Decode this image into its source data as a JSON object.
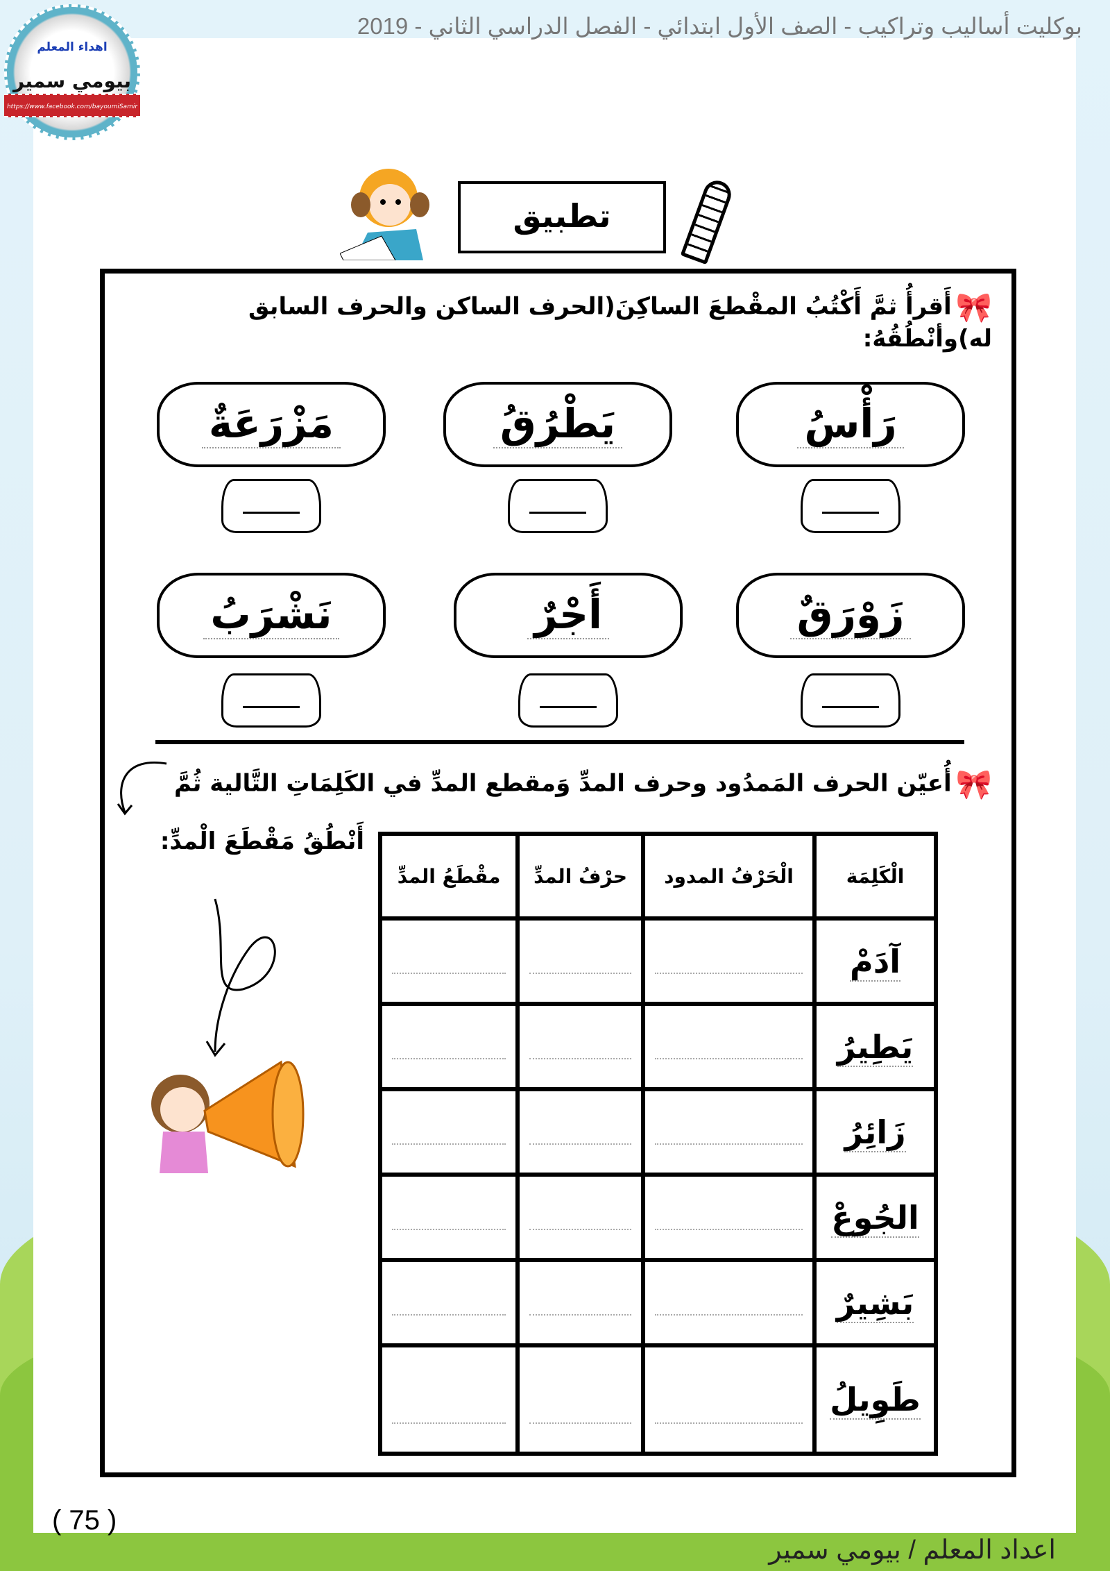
{
  "header": {
    "title": "بوكليت أساليب وتراكيب - الصف الأول ابتدائي - الفصل الدراسي الثاني - 2019"
  },
  "badge": {
    "line1": "اهداء المعلم",
    "line2": "بيومي سمير",
    "url": "https://www.facebook.com/bayoumiSamir"
  },
  "section_title": "تطبيق",
  "exercise1": {
    "instruction": "أَقرأُ ثمَّ أَكْتُبُ المقْطعَ الساكِنَ(الحرف الساكن والحرف السابق له)وأنْطُقُهُ:",
    "words": [
      "رَأْسُ",
      "يَطْرُقُ",
      "مَزْرَعَةٌ",
      "زَوْرَقٌ",
      "أَجْرٌ",
      "نَشْرَبُ"
    ]
  },
  "exercise2": {
    "instruction_line1": "أُعيّن الحرف المَمدُود وحرف المدِّ وَمقطع المدِّ في الكَلِمَاتِ التَّالية ثُمَّ",
    "instruction_line2": "أَنْطُقُ مَقْطَعَ الْمدِّ:",
    "headers": [
      "الْكَلِمَة",
      "الْحَرْفُ المدود",
      "حرْفُ المدِّ",
      "مقْطَعُ المدِّ"
    ],
    "words": [
      "آدَمْ",
      "يَطِيرُ",
      "زَائِرُ",
      "الجُوعْ",
      "بَشِيرٌ",
      "طَوِيلُ"
    ]
  },
  "page_number": "( 75 )",
  "footer": "اعداد المعلم / بيومي سمير"
}
